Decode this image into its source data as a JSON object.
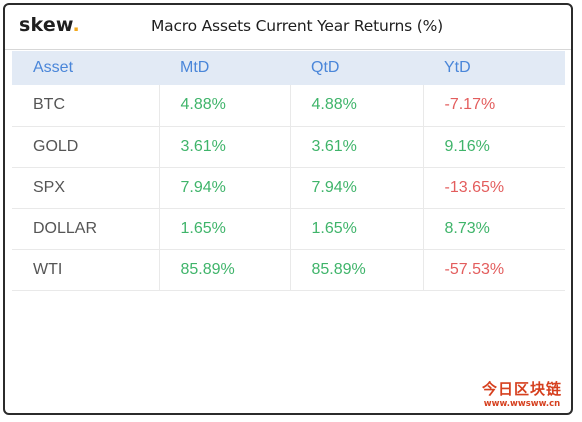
{
  "header": {
    "brand": "skew",
    "brand_dot": ".",
    "title": "Macro Assets Current Year Returns (%)"
  },
  "colors": {
    "header_bg": "#e2eaf5",
    "header_text": "#4a86d9",
    "positive": "#3fb46a",
    "negative": "#e35d5d",
    "brand_dot": "#f2a81d"
  },
  "chart_data": {
    "type": "table",
    "title": "Macro Assets Current Year Returns (%)",
    "columns": [
      "Asset",
      "MtD",
      "QtD",
      "YtD"
    ],
    "rows": [
      {
        "asset": "BTC",
        "mtd": "4.88%",
        "qtd": "4.88%",
        "ytd": "-7.17%"
      },
      {
        "asset": "GOLD",
        "mtd": "3.61%",
        "qtd": "3.61%",
        "ytd": "9.16%"
      },
      {
        "asset": "SPX",
        "mtd": "7.94%",
        "qtd": "7.94%",
        "ytd": "-13.65%"
      },
      {
        "asset": "DOLLAR",
        "mtd": "1.65%",
        "qtd": "1.65%",
        "ytd": "8.73%"
      },
      {
        "asset": "WTI",
        "mtd": "85.89%",
        "qtd": "85.89%",
        "ytd": "-57.53%"
      }
    ]
  },
  "watermark": {
    "text": "今日区块链",
    "url": "www.wwsww.cn"
  }
}
